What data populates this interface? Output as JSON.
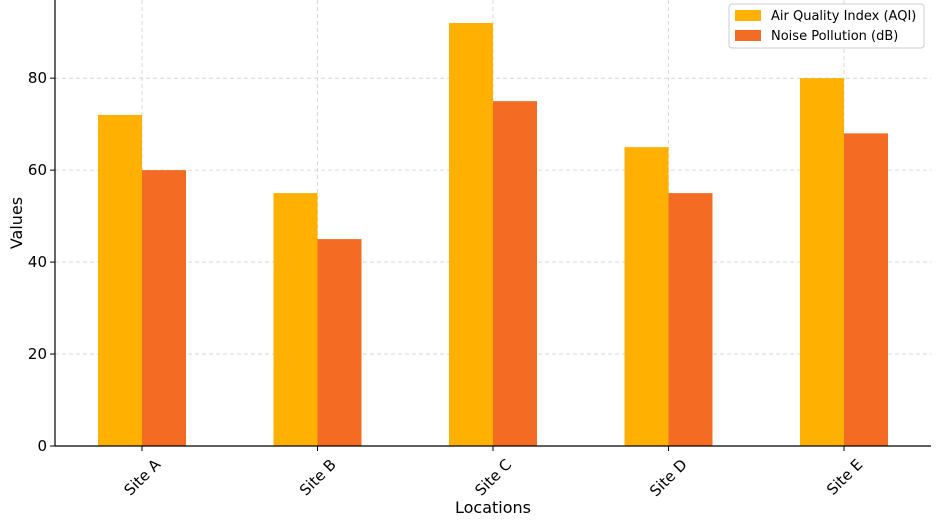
{
  "chart_data": {
    "type": "bar",
    "title": "",
    "xlabel": "Locations",
    "ylabel": "Values",
    "categories": [
      "Site A",
      "Site B",
      "Site C",
      "Site D",
      "Site E"
    ],
    "series": [
      {
        "name": "Air Quality Index (AQI)",
        "values": [
          72,
          55,
          92,
          65,
          80
        ],
        "color": "#FFB000"
      },
      {
        "name": "Noise Pollution (dB)",
        "values": [
          60,
          45,
          75,
          55,
          68
        ],
        "color": "#F46C23"
      }
    ],
    "yticks": [
      0,
      20,
      40,
      60,
      80
    ],
    "ylim": [
      0,
      97
    ],
    "grid": true,
    "legend_position": "top-right"
  }
}
